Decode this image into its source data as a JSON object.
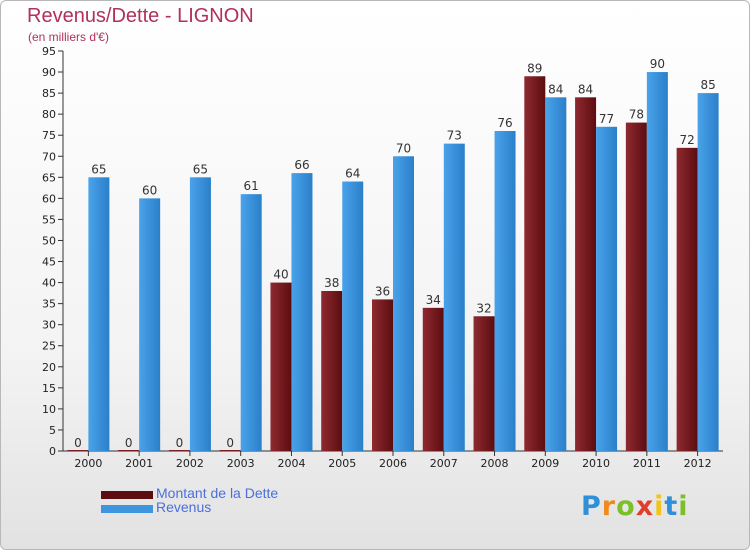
{
  "header": {
    "title": "Revenus/Dette - LIGNON",
    "subtitle": "(en milliers d'€)"
  },
  "chart_data": {
    "type": "bar",
    "categories": [
      "2000",
      "2001",
      "2002",
      "2003",
      "2004",
      "2005",
      "2006",
      "2007",
      "2008",
      "2009",
      "2010",
      "2011",
      "2012"
    ],
    "series": [
      {
        "name": "Montant de la Dette",
        "color": "#7a1f24",
        "values": [
          0,
          0,
          0,
          0,
          40,
          38,
          36,
          34,
          32,
          89,
          84,
          78,
          72
        ]
      },
      {
        "name": "Revenus",
        "color": "#3d95dd",
        "values": [
          65,
          60,
          65,
          61,
          66,
          64,
          70,
          73,
          76,
          84,
          77,
          90,
          85
        ]
      }
    ],
    "title": "Revenus/Dette - LIGNON",
    "subtitle": "(en milliers d'€)",
    "ylim": [
      0,
      95
    ],
    "ytick_step": 5,
    "grid": false,
    "legend": "bottom-left"
  },
  "legend": {
    "items": [
      {
        "label": "Montant de la Dette",
        "color": "#5c0d10"
      },
      {
        "label": "Revenus",
        "color": "#3d95dd"
      }
    ]
  },
  "logo": {
    "letters": [
      {
        "char": "P",
        "color": "#2f8fd8"
      },
      {
        "char": "r",
        "color": "#f08a1c"
      },
      {
        "char": "o",
        "color": "#7cbf2a"
      },
      {
        "char": "x",
        "color": "#e0402b"
      },
      {
        "char": "i",
        "color": "#f2c418"
      },
      {
        "char": "t",
        "color": "#2f8fd8"
      },
      {
        "char": "i",
        "color": "#7cbf2a"
      }
    ]
  }
}
